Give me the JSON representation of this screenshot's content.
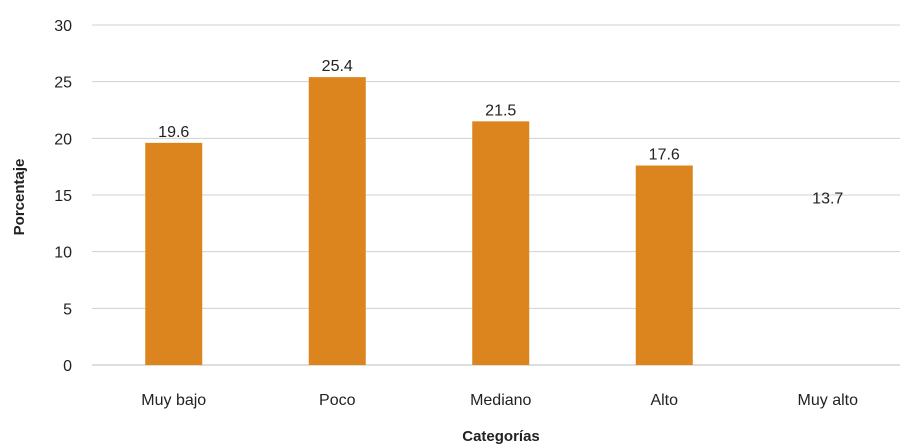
{
  "chart_data": {
    "type": "bar",
    "title": "",
    "xlabel": "Categorías",
    "ylabel": "Porcentaje",
    "categories": [
      "Muy bajo",
      "Poco",
      "Mediano",
      "Alto",
      "Muy alto"
    ],
    "values": [
      19.6,
      25.4,
      21.5,
      17.6,
      13.7
    ],
    "data_labels": [
      "19.6",
      "25.4",
      "21.5",
      "17.6",
      "13.7"
    ],
    "bars_drawn": [
      true,
      true,
      true,
      true,
      false
    ],
    "ylim": [
      0,
      30
    ],
    "yticks": [
      0,
      5,
      10,
      15,
      20,
      25,
      30
    ],
    "grid": true,
    "legend": "none",
    "colors": {
      "bar": "#DC841E",
      "grid": "#d0d0d0"
    }
  }
}
